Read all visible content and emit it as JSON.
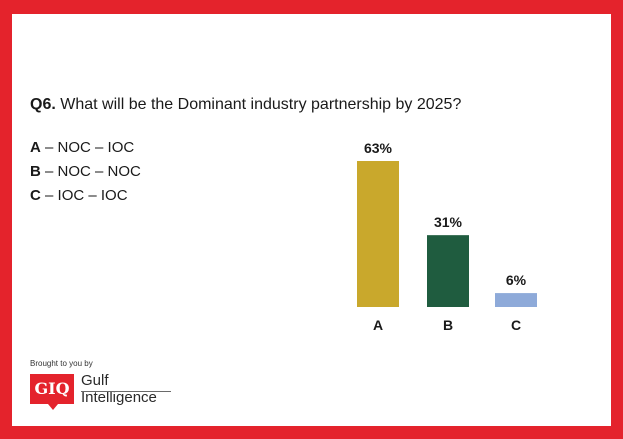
{
  "question": {
    "number": "Q6.",
    "text": "What will be the Dominant industry partnership by 2025?"
  },
  "legend": [
    {
      "key": "A",
      "label": "– NOC – IOC"
    },
    {
      "key": "B",
      "label": "– NOC – NOC"
    },
    {
      "key": "C",
      "label": "– IOC – IOC"
    }
  ],
  "chart_data": {
    "type": "bar",
    "title": "What will be the Dominant industry partnership by 2025?",
    "categories": [
      "A",
      "B",
      "C"
    ],
    "values": [
      63,
      31,
      6
    ],
    "value_labels": [
      "63%",
      "31%",
      "6%"
    ],
    "colors": [
      "#c9a82c",
      "#1f5c3f",
      "#8eaad9"
    ],
    "xlabel": "",
    "ylabel": "",
    "ylim": [
      0,
      63
    ],
    "grid": false
  },
  "footer": {
    "brought_by": "Brought to you by",
    "logo_mark": "GIQ",
    "logo_line1": "Gulf",
    "logo_line2": "Intelligence"
  }
}
